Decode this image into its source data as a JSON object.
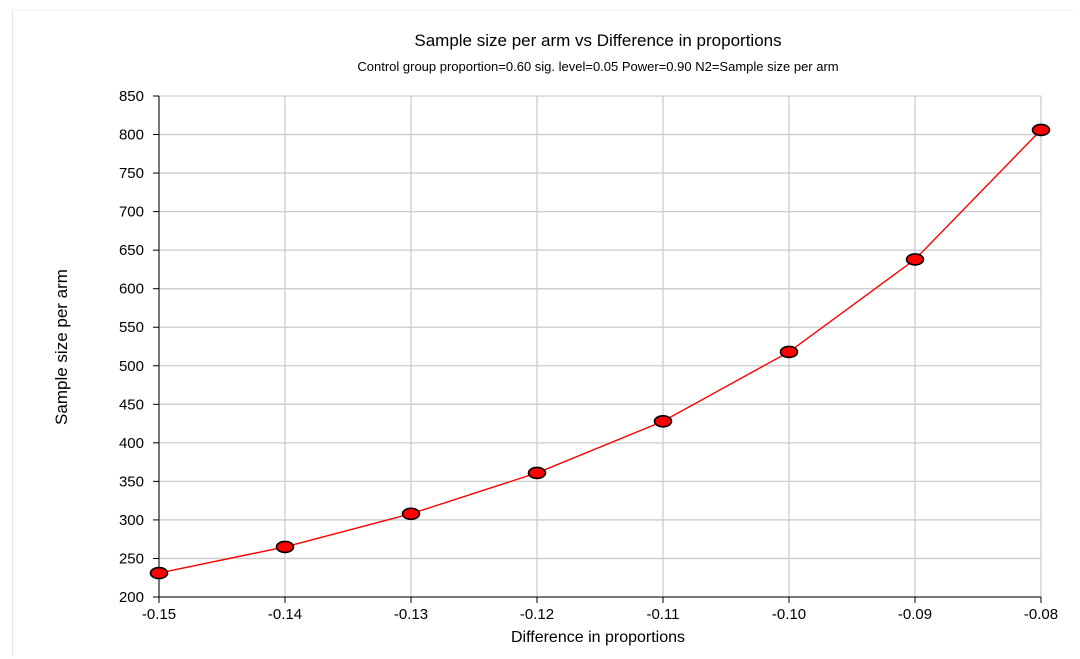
{
  "chart_data": {
    "type": "line",
    "title": "Sample size per arm vs Difference in proportions",
    "subtitle": "Control group proportion=0.60 sig. level=0.05 Power=0.90 N2=Sample size per arm",
    "xlabel": "Difference in proportions",
    "ylabel": "Sample size per arm",
    "x": [
      -0.15,
      -0.14,
      -0.13,
      -0.12,
      -0.11,
      -0.1,
      -0.09,
      -0.08
    ],
    "x_tick_labels": [
      "-0.15",
      "-0.14",
      "-0.13",
      "-0.12",
      "-0.11",
      "-0.10",
      "-0.09",
      "-0.08"
    ],
    "y_ticks": [
      200,
      250,
      300,
      350,
      400,
      450,
      500,
      550,
      600,
      650,
      700,
      750,
      800,
      850
    ],
    "xlim": [
      -0.15,
      -0.08
    ],
    "ylim": [
      200,
      850
    ],
    "grid": true,
    "series": [
      {
        "values": [
          231,
          265,
          308,
          361,
          428,
          518,
          638,
          806
        ],
        "line_color": "#ff0000",
        "marker_color": "#ff0000",
        "marker_edge_color": "#000000",
        "marker": "circle"
      }
    ],
    "gridline_color": "#cccccc"
  }
}
